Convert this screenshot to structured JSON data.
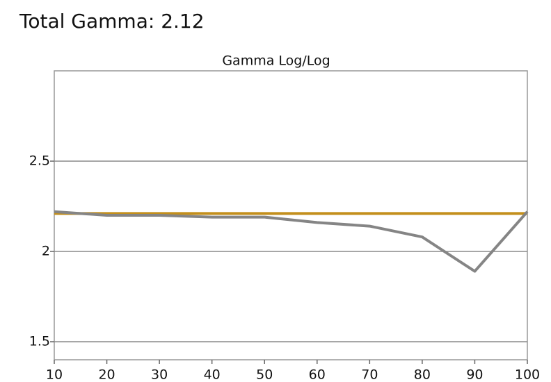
{
  "page_title": "Total Gamma: 2.12",
  "chart_data": {
    "type": "line",
    "title": "Gamma Log/Log",
    "x": [
      10,
      20,
      30,
      40,
      50,
      60,
      70,
      80,
      90,
      100
    ],
    "series": [
      {
        "color": "#c38f1c",
        "values": [
          2.21,
          2.21,
          2.21,
          2.21,
          2.21,
          2.21,
          2.21,
          2.21,
          2.21,
          2.21
        ]
      },
      {
        "color": "#858585",
        "values": [
          2.22,
          2.2,
          2.2,
          2.19,
          2.19,
          2.16,
          2.14,
          2.08,
          1.89,
          2.22
        ]
      }
    ],
    "xlim": [
      10,
      100
    ],
    "xticks": [
      10,
      20,
      30,
      40,
      50,
      60,
      70,
      80,
      90,
      100
    ],
    "ylim": [
      1.4,
      3.0
    ],
    "yticks": [
      1.5,
      2,
      2.5
    ],
    "grid": true
  }
}
